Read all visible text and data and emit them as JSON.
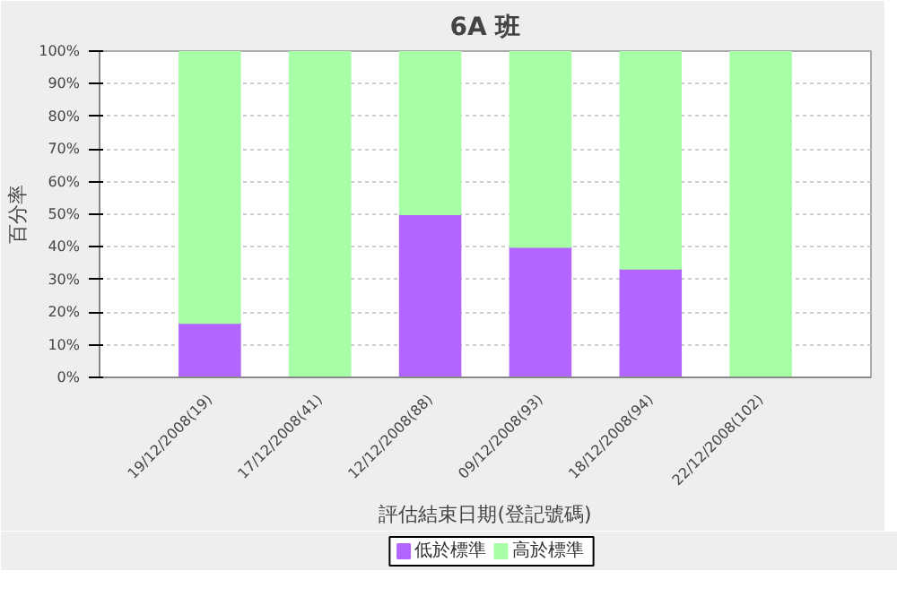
{
  "chart_data": {
    "type": "bar",
    "title": "6A 班",
    "xlabel": "評估結束日期(登記號碼)",
    "ylabel": "百分率",
    "categories": [
      "19/12/2008(19)",
      "17/12/2008(41)",
      "12/12/2008(88)",
      "09/12/2008(93)",
      "18/12/2008(94)",
      "22/12/2008(102)"
    ],
    "stacked": true,
    "series": [
      {
        "name": "低於標準",
        "color": "#b266ff",
        "values": [
          16.7,
          0,
          50,
          40,
          33.3,
          0
        ]
      },
      {
        "name": "高於標準",
        "color": "#a6ffa6",
        "values": [
          83.3,
          100,
          50,
          60,
          66.7,
          100
        ]
      }
    ],
    "ylim": [
      0,
      100
    ],
    "yticks": [
      {
        "value": 0,
        "label": "0%"
      },
      {
        "value": 10,
        "label": "10%"
      },
      {
        "value": 20,
        "label": "20%"
      },
      {
        "value": 30,
        "label": "30%"
      },
      {
        "value": 40,
        "label": "40%"
      },
      {
        "value": 50,
        "label": "50%"
      },
      {
        "value": 60,
        "label": "60%"
      },
      {
        "value": 70,
        "label": "70%"
      },
      {
        "value": 80,
        "label": "80%"
      },
      {
        "value": 90,
        "label": "90%"
      },
      {
        "value": 100,
        "label": "100%"
      }
    ],
    "grid": "y",
    "legend": "bottom"
  }
}
